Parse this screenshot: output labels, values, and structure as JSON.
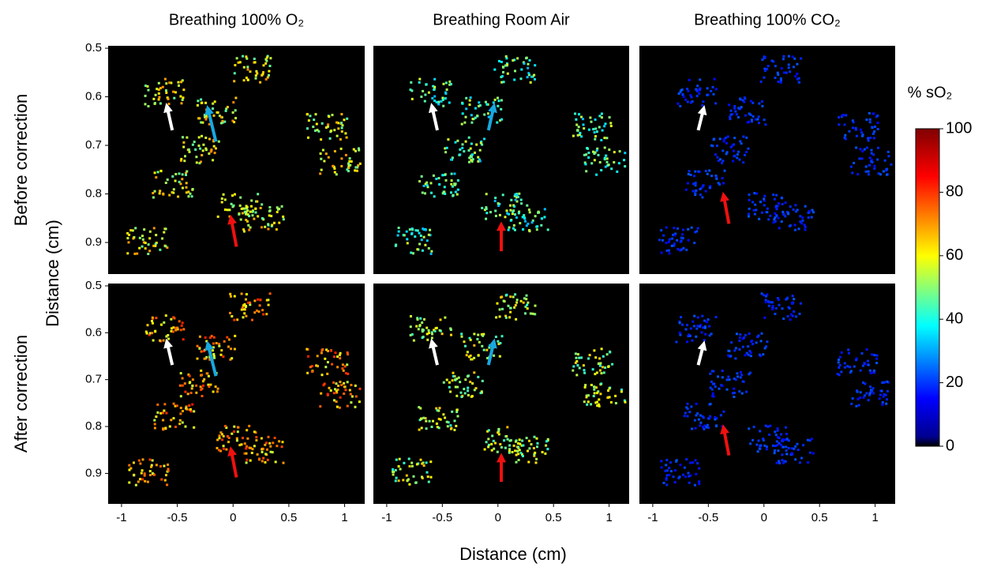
{
  "figure": {
    "columns": [
      "Breathing 100% O₂",
      "Breathing Room Air",
      "Breathing 100% CO₂"
    ],
    "rows": [
      "Before correction",
      "After correction"
    ],
    "x_axis": {
      "label": "Distance (cm)",
      "lim": [
        -1.12,
        1.18
      ],
      "ticks": [
        -1,
        -0.5,
        0,
        0.5,
        1
      ]
    },
    "y_axis": {
      "label": "Distance (cm)",
      "lim": [
        0.495,
        0.965
      ],
      "ticks": [
        0.5,
        0.6,
        0.7,
        0.8,
        0.9
      ]
    },
    "colorbar": {
      "title": "% sO₂",
      "lim": [
        0,
        100
      ],
      "ticks": [
        0,
        20,
        40,
        60,
        80,
        100
      ]
    }
  }
}
